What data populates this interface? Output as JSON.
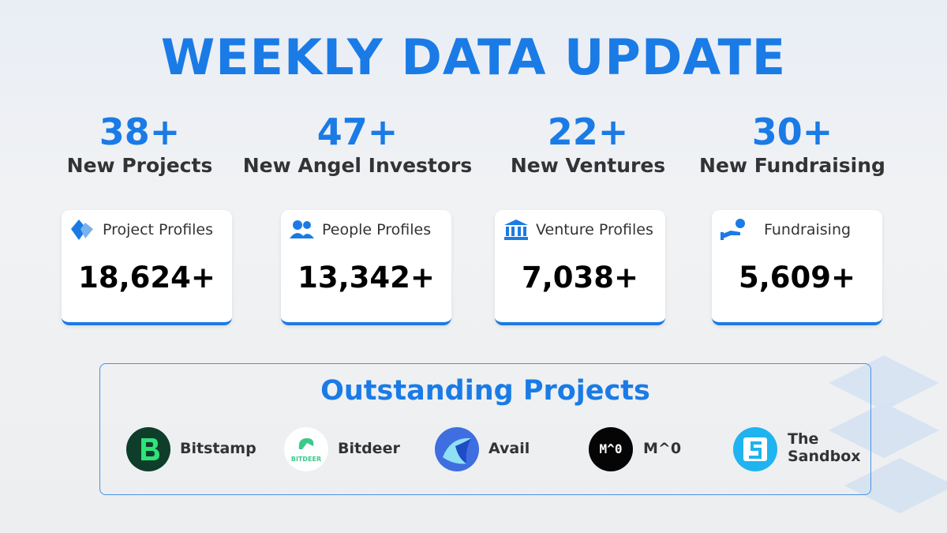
{
  "header": {
    "title": "WEEKLY DATA UPDATE"
  },
  "stats": [
    {
      "value": "38+",
      "label": "New Projects"
    },
    {
      "value": "47+",
      "label": "New Angel Investors"
    },
    {
      "value": "22+",
      "label": "New Ventures"
    },
    {
      "value": "30+",
      "label": "New Fundraising"
    }
  ],
  "cards": [
    {
      "label": "Project Profiles",
      "value": "18,624+"
    },
    {
      "label": "People Profiles",
      "value": "13,342+"
    },
    {
      "label": "Venture Profiles",
      "value": "7,038+"
    },
    {
      "label": "Fundraising",
      "value": "5,609+"
    }
  ],
  "outstanding": {
    "title": "Outstanding Projects",
    "projects": [
      {
        "name": "Bitstamp"
      },
      {
        "name": "Bitdeer",
        "logo_text": "BITDEER"
      },
      {
        "name": "Avail"
      },
      {
        "name": "M^0",
        "logo_text": "M^0"
      },
      {
        "name": "The Sandbox"
      }
    ]
  }
}
